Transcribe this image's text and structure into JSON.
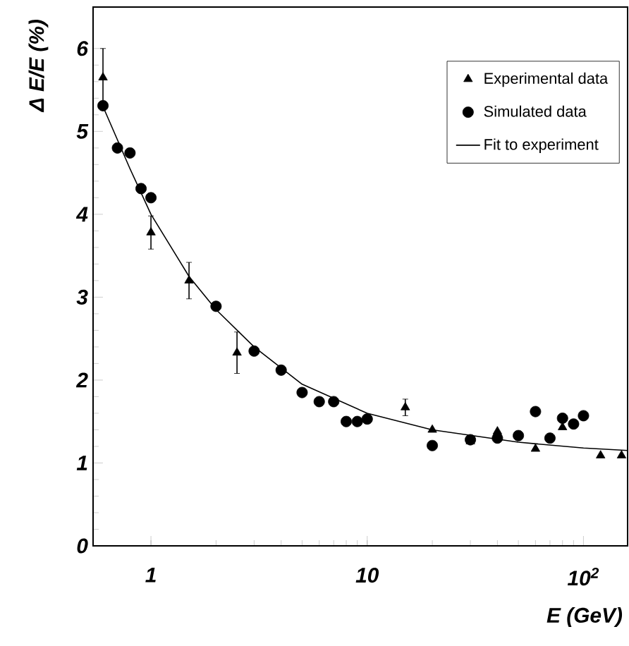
{
  "chart_data": {
    "type": "scatter",
    "xlabel": "E (GeV)",
    "ylabel": "Δ E/E (%)",
    "log": "x",
    "xlim": [
      0.54,
      160
    ],
    "ylim": [
      0,
      6.5
    ],
    "xticks": [
      {
        "value": 1,
        "label": "1"
      },
      {
        "value": 10,
        "label": "10"
      },
      {
        "value": 100,
        "label": "10$^{2}$"
      }
    ],
    "yticks": [
      0,
      1,
      2,
      3,
      4,
      5,
      6
    ],
    "legend": "top right",
    "grid": false,
    "series": [
      {
        "name": "Experimental data",
        "marker": "triangle",
        "color": "#000000",
        "x": [
          0.6,
          1.0,
          1.5,
          2.5,
          3.0,
          15,
          20,
          30,
          40,
          60,
          80,
          120,
          150
        ],
        "values": [
          5.65,
          3.78,
          3.2,
          2.33,
          null,
          1.67,
          1.4,
          1.26,
          1.38,
          1.17,
          1.43,
          1.09,
          1.09
        ],
        "errors": [
          0.35,
          0.2,
          0.22,
          0.25,
          null,
          0.1,
          null,
          null,
          null,
          null,
          null,
          null,
          null
        ]
      },
      {
        "name": "Simulated data",
        "marker": "circle",
        "color": "#000000",
        "x": [
          0.6,
          0.7,
          0.8,
          0.9,
          1.0,
          2.0,
          3.0,
          4.0,
          5.0,
          6.0,
          7.0,
          8.0,
          9.0,
          10,
          20,
          30,
          40,
          50,
          60,
          70,
          80,
          90,
          100
        ],
        "values": [
          5.31,
          4.8,
          4.74,
          4.31,
          4.2,
          2.89,
          2.35,
          2.12,
          1.85,
          1.74,
          1.74,
          1.5,
          1.5,
          1.53,
          1.21,
          1.28,
          1.3,
          1.33,
          1.62,
          1.3,
          1.54,
          1.47,
          1.57
        ]
      },
      {
        "name": "Fit to experiment",
        "type": "line",
        "marker": "none",
        "line_style": "solid",
        "color": "#000000",
        "x": [
          0.6,
          0.8,
          1.0,
          1.5,
          2.0,
          3.0,
          5.0,
          10,
          20,
          50,
          100,
          160
        ],
        "values": [
          5.3,
          4.55,
          4.0,
          3.25,
          2.85,
          2.4,
          1.95,
          1.6,
          1.4,
          1.25,
          1.18,
          1.15
        ]
      }
    ]
  }
}
